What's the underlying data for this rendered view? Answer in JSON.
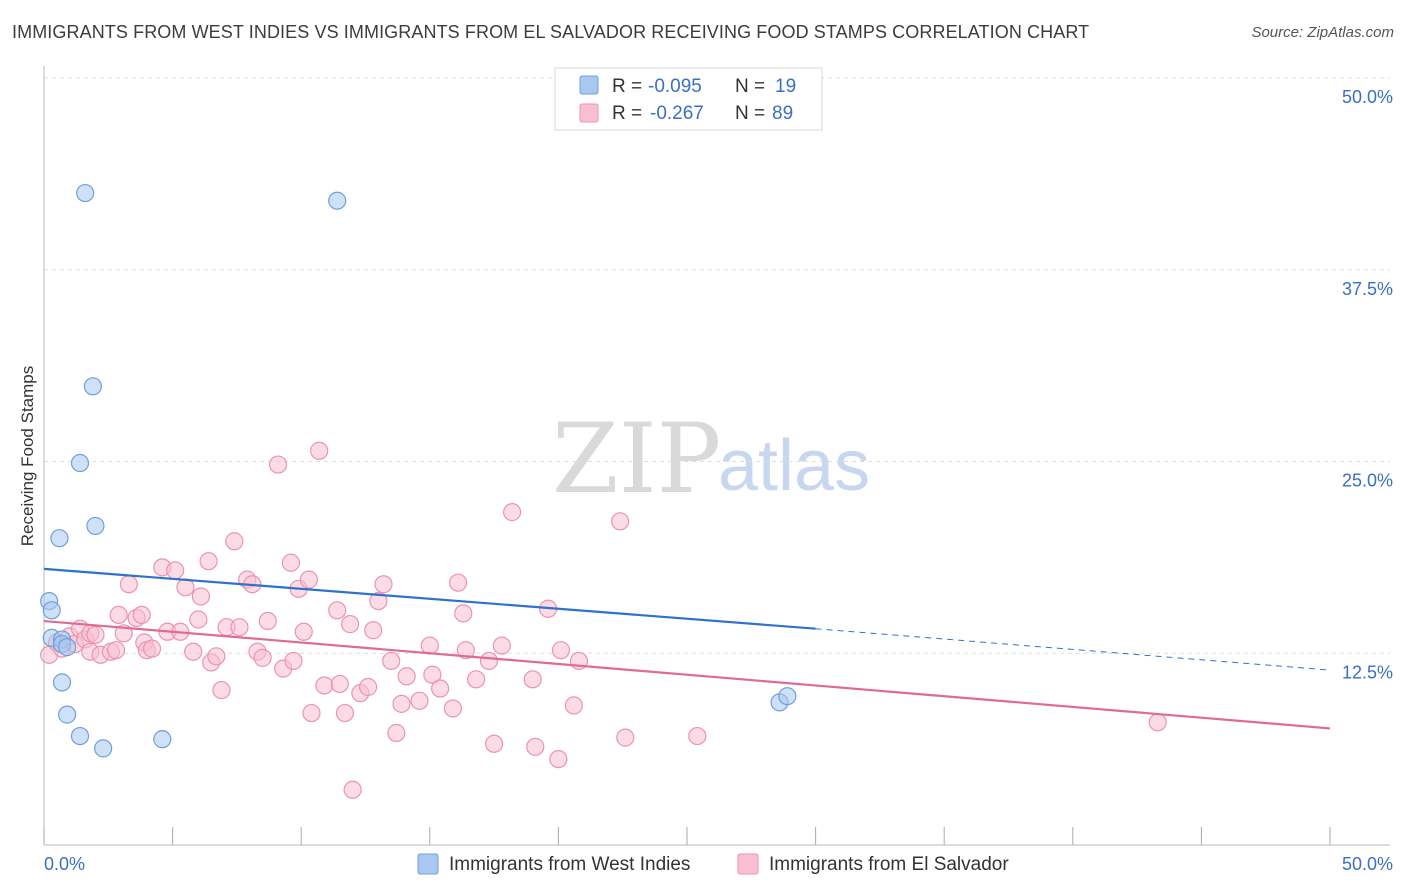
{
  "title": "IMMIGRANTS FROM WEST INDIES VS IMMIGRANTS FROM EL SALVADOR RECEIVING FOOD STAMPS CORRELATION CHART",
  "source": "Source: ZipAtlas.com",
  "watermark": {
    "zip": "ZIP",
    "atlas": "atlas"
  },
  "colors": {
    "blue_fill": "#a8c8f0",
    "blue_stroke": "#6fa0dc",
    "blue_line": "#2f72cc",
    "pink_fill": "#f7bfd0",
    "pink_stroke": "#ec93b2",
    "pink_line": "#e06a96",
    "grid": "#dddddd",
    "axis_text": "#3a6fc4"
  },
  "chart_data": {
    "type": "scatter",
    "title": "IMMIGRANTS FROM WEST INDIES VS IMMIGRANTS FROM EL SALVADOR RECEIVING FOOD STAMPS CORRELATION CHART",
    "xlabel": "",
    "ylabel": "Receiving Food Stamps",
    "xlim": [
      0,
      50
    ],
    "ylim": [
      0,
      50
    ],
    "x_tick_labels": [
      {
        "value": 0,
        "label": "0.0%"
      },
      {
        "value": 50,
        "label": "50.0%"
      }
    ],
    "y_ticks": [
      {
        "value": 12.5,
        "label": "12.5%"
      },
      {
        "value": 25.0,
        "label": "25.0%"
      },
      {
        "value": 37.5,
        "label": "37.5%"
      },
      {
        "value": 50.0,
        "label": "50.0%"
      }
    ],
    "x_minor_ticks": [
      0,
      5,
      10,
      15,
      20,
      25,
      30,
      35,
      40,
      45,
      50
    ],
    "grid": true,
    "legend": [
      {
        "series": "Immigrants from West Indies",
        "r_label": "R =",
        "r_value": "-0.095",
        "n_label": "N =",
        "n_value": "19"
      },
      {
        "series": "Immigrants from El Salvador",
        "r_label": "R =",
        "r_value": "-0.267",
        "n_label": "N =",
        "n_value": "89"
      }
    ],
    "series": [
      {
        "name": "Immigrants from West Indies",
        "color": "blue",
        "points": [
          [
            0.2,
            15.9
          ],
          [
            0.3,
            15.3
          ],
          [
            0.3,
            13.5
          ],
          [
            0.6,
            20.0
          ],
          [
            0.7,
            13.4
          ],
          [
            0.7,
            13.1
          ],
          [
            0.7,
            10.6
          ],
          [
            0.9,
            8.5
          ],
          [
            0.9,
            12.9
          ],
          [
            1.4,
            24.9
          ],
          [
            1.4,
            7.1
          ],
          [
            1.6,
            42.5
          ],
          [
            1.9,
            29.9
          ],
          [
            2.0,
            20.8
          ],
          [
            2.3,
            6.3
          ],
          [
            4.6,
            6.9
          ],
          [
            11.4,
            42.0
          ],
          [
            28.6,
            9.3
          ],
          [
            28.9,
            9.7
          ]
        ],
        "trend": {
          "x0": 0,
          "y0": 18.0,
          "x1": 30,
          "y1": 14.1,
          "dash_x1": 50,
          "dash_y1": 11.4
        }
      },
      {
        "name": "Immigrants from El Salvador",
        "color": "pink",
        "points": [
          [
            0.2,
            12.4
          ],
          [
            0.5,
            13.2
          ],
          [
            0.7,
            12.8
          ],
          [
            1.0,
            13.6
          ],
          [
            1.2,
            13.1
          ],
          [
            1.4,
            14.1
          ],
          [
            1.6,
            13.4
          ],
          [
            1.8,
            13.8
          ],
          [
            1.8,
            12.6
          ],
          [
            2.0,
            13.7
          ],
          [
            2.2,
            12.4
          ],
          [
            2.6,
            12.6
          ],
          [
            2.8,
            12.7
          ],
          [
            2.9,
            15.0
          ],
          [
            3.1,
            13.8
          ],
          [
            3.3,
            17.0
          ],
          [
            3.6,
            14.8
          ],
          [
            3.8,
            15.0
          ],
          [
            3.9,
            13.2
          ],
          [
            4.0,
            12.7
          ],
          [
            4.2,
            12.8
          ],
          [
            4.6,
            18.1
          ],
          [
            4.8,
            13.9
          ],
          [
            5.1,
            17.9
          ],
          [
            5.3,
            13.9
          ],
          [
            5.5,
            16.8
          ],
          [
            5.8,
            12.6
          ],
          [
            6.0,
            14.7
          ],
          [
            6.1,
            16.2
          ],
          [
            6.4,
            18.5
          ],
          [
            6.5,
            11.9
          ],
          [
            6.7,
            12.3
          ],
          [
            6.9,
            10.1
          ],
          [
            7.1,
            14.2
          ],
          [
            7.4,
            19.8
          ],
          [
            7.6,
            14.2
          ],
          [
            7.9,
            17.3
          ],
          [
            8.1,
            17.0
          ],
          [
            8.3,
            12.6
          ],
          [
            8.5,
            12.2
          ],
          [
            8.7,
            14.6
          ],
          [
            9.1,
            24.8
          ],
          [
            9.3,
            11.5
          ],
          [
            9.6,
            18.4
          ],
          [
            9.7,
            12.0
          ],
          [
            9.9,
            16.7
          ],
          [
            10.1,
            13.9
          ],
          [
            10.3,
            17.3
          ],
          [
            10.4,
            8.6
          ],
          [
            10.7,
            25.7
          ],
          [
            10.9,
            10.4
          ],
          [
            11.4,
            15.3
          ],
          [
            11.5,
            10.5
          ],
          [
            11.7,
            8.6
          ],
          [
            11.9,
            14.4
          ],
          [
            12.0,
            3.6
          ],
          [
            12.3,
            9.9
          ],
          [
            12.6,
            10.3
          ],
          [
            12.8,
            14.0
          ],
          [
            13.0,
            15.9
          ],
          [
            13.2,
            17.0
          ],
          [
            13.5,
            12.0
          ],
          [
            13.7,
            7.3
          ],
          [
            13.9,
            9.2
          ],
          [
            14.1,
            11.0
          ],
          [
            14.6,
            9.4
          ],
          [
            15.0,
            13.0
          ],
          [
            15.1,
            11.1
          ],
          [
            15.4,
            10.2
          ],
          [
            15.9,
            8.9
          ],
          [
            16.1,
            17.1
          ],
          [
            16.3,
            15.1
          ],
          [
            16.4,
            12.7
          ],
          [
            16.8,
            10.8
          ],
          [
            17.3,
            12.0
          ],
          [
            17.5,
            6.6
          ],
          [
            17.8,
            13.0
          ],
          [
            18.2,
            21.7
          ],
          [
            19.0,
            10.8
          ],
          [
            19.1,
            6.4
          ],
          [
            19.6,
            15.4
          ],
          [
            20.0,
            5.6
          ],
          [
            20.1,
            12.7
          ],
          [
            20.6,
            9.1
          ],
          [
            20.8,
            12.0
          ],
          [
            22.6,
            7.0
          ],
          [
            22.4,
            21.1
          ],
          [
            25.4,
            7.1
          ],
          [
            43.3,
            8.0
          ]
        ],
        "trend": {
          "x0": 0,
          "y0": 14.6,
          "x1": 50,
          "y1": 7.6
        }
      }
    ]
  }
}
